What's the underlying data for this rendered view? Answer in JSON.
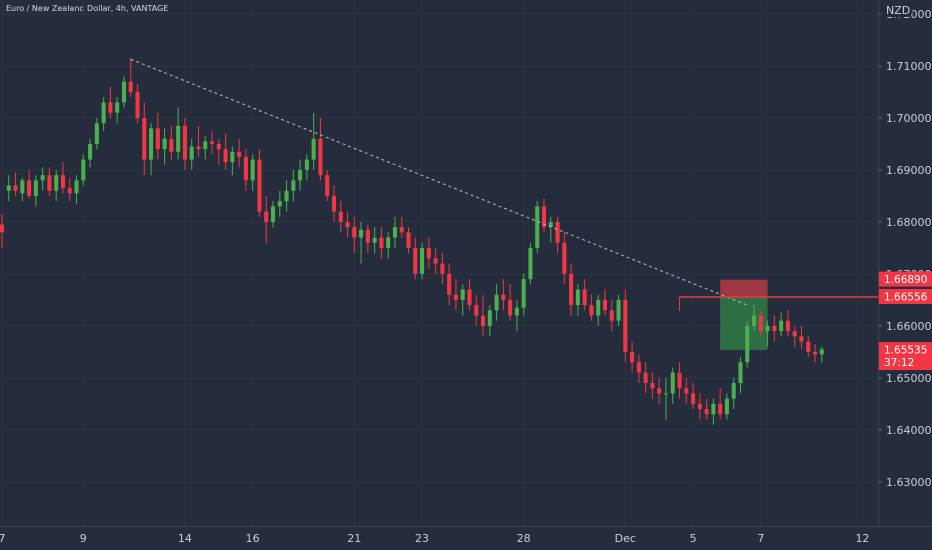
{
  "chart_data": {
    "type": "candlestick",
    "title": "Euro / New Zealand Dollar, 4h, VANTAGE",
    "currency": "NZD",
    "ylim": [
      1.6215,
      1.7227
    ],
    "xlim": [
      0,
      129
    ],
    "y_ticks": [
      "1.72000",
      "1.71000",
      "1.70000",
      "1.69000",
      "1.68000",
      "1.67000",
      "1.66000",
      "1.65000",
      "1.64000",
      "1.63000"
    ],
    "x_ticks": [
      {
        "label": "7",
        "x": 0
      },
      {
        "label": "9",
        "x": 12
      },
      {
        "label": "14",
        "x": 27
      },
      {
        "label": "16",
        "x": 37
      },
      {
        "label": "21",
        "x": 52
      },
      {
        "label": "23",
        "x": 62
      },
      {
        "label": "28",
        "x": 77
      },
      {
        "label": "Dec",
        "x": 92
      },
      {
        "label": "5",
        "x": 102
      },
      {
        "label": "7",
        "x": 112
      },
      {
        "label": "12",
        "x": 127
      }
    ],
    "candles": [
      [
        1.6795,
        1.6815,
        1.675,
        1.678
      ],
      [
        1.686,
        1.689,
        1.684,
        1.687
      ],
      [
        1.687,
        1.6895,
        1.685,
        1.686
      ],
      [
        1.6855,
        1.6885,
        1.684,
        1.688
      ],
      [
        1.688,
        1.69,
        1.6845,
        1.685
      ],
      [
        1.685,
        1.689,
        1.683,
        1.688
      ],
      [
        1.688,
        1.6905,
        1.686,
        1.689
      ],
      [
        1.689,
        1.6905,
        1.685,
        1.686
      ],
      [
        1.686,
        1.69,
        1.684,
        1.689
      ],
      [
        1.689,
        1.6915,
        1.6855,
        1.6865
      ],
      [
        1.6865,
        1.6885,
        1.684,
        1.6855
      ],
      [
        1.6855,
        1.689,
        1.6835,
        1.688
      ],
      [
        1.688,
        1.693,
        1.687,
        1.692
      ],
      [
        1.692,
        1.696,
        1.6905,
        1.695
      ],
      [
        1.695,
        1.7,
        1.694,
        1.699
      ],
      [
        1.699,
        1.704,
        1.6975,
        1.703
      ],
      [
        1.703,
        1.706,
        1.7,
        1.701
      ],
      [
        1.701,
        1.704,
        1.699,
        1.703
      ],
      [
        1.703,
        1.708,
        1.702,
        1.707
      ],
      [
        1.707,
        1.7115,
        1.704,
        1.705
      ],
      [
        1.705,
        1.7065,
        1.699,
        1.7
      ],
      [
        1.7,
        1.703,
        1.689,
        1.692
      ],
      [
        1.692,
        1.699,
        1.689,
        1.698
      ],
      [
        1.698,
        1.701,
        1.692,
        1.694
      ],
      [
        1.694,
        1.698,
        1.691,
        1.696
      ],
      [
        1.696,
        1.6985,
        1.692,
        1.6935
      ],
      [
        1.6935,
        1.702,
        1.692,
        1.6985
      ],
      [
        1.6985,
        1.7,
        1.69,
        1.692
      ],
      [
        1.692,
        1.696,
        1.69,
        1.6945
      ],
      [
        1.6945,
        1.6985,
        1.6925,
        1.694
      ],
      [
        1.694,
        1.6965,
        1.692,
        1.6955
      ],
      [
        1.6955,
        1.6975,
        1.693,
        1.695
      ],
      [
        1.695,
        1.696,
        1.691,
        1.694
      ],
      [
        1.694,
        1.697,
        1.69,
        1.6915
      ],
      [
        1.6915,
        1.6945,
        1.689,
        1.6935
      ],
      [
        1.6935,
        1.696,
        1.6905,
        1.6925
      ],
      [
        1.6925,
        1.694,
        1.686,
        1.688
      ],
      [
        1.688,
        1.693,
        1.686,
        1.692
      ],
      [
        1.692,
        1.694,
        1.681,
        1.682
      ],
      [
        1.682,
        1.685,
        1.676,
        1.68
      ],
      [
        1.68,
        1.684,
        1.679,
        1.683
      ],
      [
        1.683,
        1.686,
        1.681,
        1.684
      ],
      [
        1.684,
        1.688,
        1.682,
        1.686
      ],
      [
        1.686,
        1.69,
        1.684,
        1.688
      ],
      [
        1.688,
        1.692,
        1.686,
        1.69
      ],
      [
        1.69,
        1.693,
        1.688,
        1.692
      ],
      [
        1.692,
        1.701,
        1.69,
        1.696
      ],
      [
        1.696,
        1.7,
        1.688,
        1.689
      ],
      [
        1.689,
        1.69,
        1.684,
        1.685
      ],
      [
        1.685,
        1.687,
        1.68,
        1.682
      ],
      [
        1.682,
        1.684,
        1.678,
        1.68
      ],
      [
        1.68,
        1.682,
        1.677,
        1.679
      ],
      [
        1.679,
        1.681,
        1.674,
        1.677
      ],
      [
        1.677,
        1.68,
        1.672,
        1.6785
      ],
      [
        1.6785,
        1.6795,
        1.674,
        1.676
      ],
      [
        1.676,
        1.679,
        1.674,
        1.677
      ],
      [
        1.677,
        1.679,
        1.673,
        1.675
      ],
      [
        1.675,
        1.678,
        1.673,
        1.677
      ],
      [
        1.677,
        1.681,
        1.675,
        1.679
      ],
      [
        1.679,
        1.681,
        1.677,
        1.678
      ],
      [
        1.678,
        1.679,
        1.674,
        1.675
      ],
      [
        1.675,
        1.677,
        1.669,
        1.67
      ],
      [
        1.67,
        1.676,
        1.669,
        1.675
      ],
      [
        1.675,
        1.677,
        1.671,
        1.673
      ],
      [
        1.673,
        1.675,
        1.67,
        1.672
      ],
      [
        1.672,
        1.674,
        1.668,
        1.67
      ],
      [
        1.67,
        1.672,
        1.664,
        1.666
      ],
      [
        1.666,
        1.669,
        1.663,
        1.665
      ],
      [
        1.665,
        1.668,
        1.662,
        1.667
      ],
      [
        1.667,
        1.669,
        1.663,
        1.664
      ],
      [
        1.664,
        1.666,
        1.66,
        1.662
      ],
      [
        1.662,
        1.666,
        1.658,
        1.66
      ],
      [
        1.66,
        1.664,
        1.658,
        1.663
      ],
      [
        1.663,
        1.668,
        1.661,
        1.666
      ],
      [
        1.666,
        1.669,
        1.663,
        1.665
      ],
      [
        1.665,
        1.668,
        1.661,
        1.662
      ],
      [
        1.662,
        1.665,
        1.659,
        1.6635
      ],
      [
        1.6635,
        1.67,
        1.662,
        1.669
      ],
      [
        1.669,
        1.676,
        1.668,
        1.675
      ],
      [
        1.675,
        1.684,
        1.674,
        1.683
      ],
      [
        1.683,
        1.6845,
        1.678,
        1.679
      ],
      [
        1.679,
        1.681,
        1.676,
        1.68
      ],
      [
        1.68,
        1.681,
        1.674,
        1.676
      ],
      [
        1.676,
        1.678,
        1.668,
        1.67
      ],
      [
        1.67,
        1.672,
        1.662,
        1.664
      ],
      [
        1.664,
        1.668,
        1.662,
        1.667
      ],
      [
        1.667,
        1.669,
        1.663,
        1.664
      ],
      [
        1.664,
        1.666,
        1.661,
        1.662
      ],
      [
        1.662,
        1.666,
        1.66,
        1.665
      ],
      [
        1.665,
        1.667,
        1.662,
        1.663
      ],
      [
        1.663,
        1.665,
        1.659,
        1.661
      ],
      [
        1.661,
        1.666,
        1.66,
        1.665
      ],
      [
        1.665,
        1.667,
        1.653,
        1.655
      ],
      [
        1.655,
        1.657,
        1.651,
        1.653
      ],
      [
        1.653,
        1.6545,
        1.649,
        1.651
      ],
      [
        1.651,
        1.653,
        1.647,
        1.649
      ],
      [
        1.649,
        1.651,
        1.646,
        1.648
      ],
      [
        1.648,
        1.65,
        1.645,
        1.647
      ],
      [
        1.647,
        1.65,
        1.642,
        1.647
      ],
      [
        1.647,
        1.652,
        1.645,
        1.651
      ],
      [
        1.651,
        1.653,
        1.646,
        1.648
      ],
      [
        1.648,
        1.65,
        1.645,
        1.647
      ],
      [
        1.647,
        1.649,
        1.644,
        1.645
      ],
      [
        1.645,
        1.647,
        1.642,
        1.644
      ],
      [
        1.644,
        1.646,
        1.642,
        1.643
      ],
      [
        1.643,
        1.646,
        1.641,
        1.645
      ],
      [
        1.645,
        1.648,
        1.642,
        1.643
      ],
      [
        1.643,
        1.647,
        1.642,
        1.646
      ],
      [
        1.646,
        1.65,
        1.644,
        1.649
      ],
      [
        1.649,
        1.654,
        1.647,
        1.653
      ],
      [
        1.653,
        1.661,
        1.652,
        1.66
      ],
      [
        1.66,
        1.664,
        1.659,
        1.662
      ],
      [
        1.662,
        1.663,
        1.658,
        1.659
      ],
      [
        1.659,
        1.661,
        1.656,
        1.66
      ],
      [
        1.66,
        1.662,
        1.657,
        1.659
      ],
      [
        1.659,
        1.6625,
        1.658,
        1.661
      ],
      [
        1.661,
        1.663,
        1.658,
        1.659
      ],
      [
        1.659,
        1.66,
        1.656,
        1.658
      ],
      [
        1.658,
        1.66,
        1.6555,
        1.657
      ],
      [
        1.657,
        1.658,
        1.654,
        1.655
      ],
      [
        1.655,
        1.6565,
        1.653,
        1.6545
      ],
      [
        1.6545,
        1.656,
        1.653,
        1.6555
      ]
    ],
    "trendline": {
      "from": [
        19,
        1.7113
      ],
      "to": [
        110,
        1.664
      ]
    },
    "horizontal_line": {
      "from": [
        100,
        1.66556
      ],
      "to": [
        129,
        1.66556
      ]
    },
    "position": {
      "x0": 106,
      "x1": 113,
      "stop": 1.6689,
      "entry": 1.66556,
      "target": 1.65535
    },
    "price_tags": [
      {
        "label": "1.66890",
        "value": 1.6689,
        "color": "#f23645"
      },
      {
        "label": "1.66556",
        "value": 1.66556,
        "color": "#f23645"
      },
      {
        "label": "1.65535",
        "sub": "37:12",
        "value": 1.65535,
        "color": "#f23645"
      }
    ],
    "colors": {
      "background": "#252d3d",
      "bull": "#4caf50",
      "bear": "#f23645",
      "trendline": "#b8bcc8",
      "hline": "#f23645",
      "stop_zone": "#b33a44",
      "target_zone": "#2f7a46"
    }
  }
}
